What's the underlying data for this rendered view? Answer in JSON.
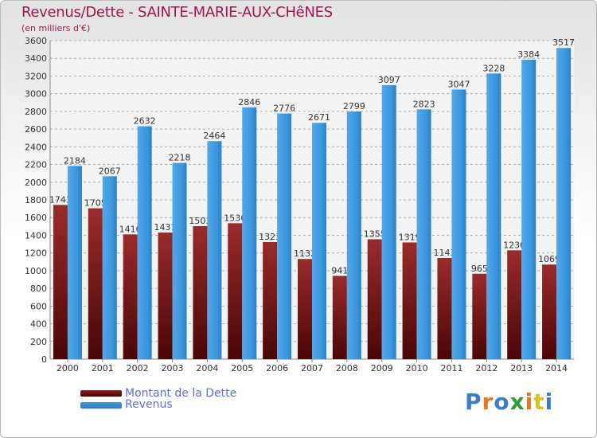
{
  "header": {
    "title": "Revenus/Dette - SAINTE-MARIE-AUX-CHêNES",
    "subtitle": "(en milliers d'€)"
  },
  "legend": {
    "items": [
      {
        "label": "Montant de la Dette",
        "color": "#8b1a1a"
      },
      {
        "label": "Revenus",
        "color": "#3a95dc"
      }
    ]
  },
  "logo": {
    "text": "Proxiti",
    "letter_colors": [
      "#3a7ec8",
      "#e07b1d",
      "#3a7ec8",
      "#2e9e3c",
      "#e07b1d",
      "#d8c21a",
      "#3a7ec8"
    ]
  },
  "chart_data": {
    "type": "bar",
    "title": "Revenus/Dette - SAINTE-MARIE-AUX-CHêNES",
    "ylabel": "(en milliers d'€)",
    "xlabel": "",
    "categories": [
      "2000",
      "2001",
      "2002",
      "2003",
      "2004",
      "2005",
      "2006",
      "2007",
      "2008",
      "2009",
      "2010",
      "2011",
      "2012",
      "2013",
      "2014"
    ],
    "series": [
      {
        "name": "Montant de la Dette",
        "color": "#8b1a1a",
        "values": [
          1743,
          1705,
          1410,
          1431,
          1503,
          1536,
          1323,
          1132,
          941,
          1355,
          1319,
          1143,
          965,
          1230,
          1069
        ],
        "labels": [
          "1743",
          "1705",
          "1410",
          "1431",
          "1503",
          "1536",
          "1323",
          "1132",
          "941",
          "1355",
          "1319",
          "1143",
          "965",
          "1230",
          "1069"
        ]
      },
      {
        "name": "Revenus",
        "color": "#3a95dc",
        "values": [
          2184,
          2067,
          2632,
          2218,
          2464,
          2846,
          2776,
          2671,
          2799,
          3097,
          2823,
          3047,
          3228,
          3384,
          3517
        ],
        "labels": [
          "2184",
          "2067",
          "2632",
          "2218",
          "2464",
          "2846",
          "2776",
          "2671",
          "2799",
          "3097",
          "2823",
          "3047",
          "3228",
          "3384",
          "3517"
        ]
      }
    ],
    "ylim": [
      0,
      3600
    ],
    "ytick_step": 200,
    "grid": true,
    "legend_position": "bottom-left"
  }
}
